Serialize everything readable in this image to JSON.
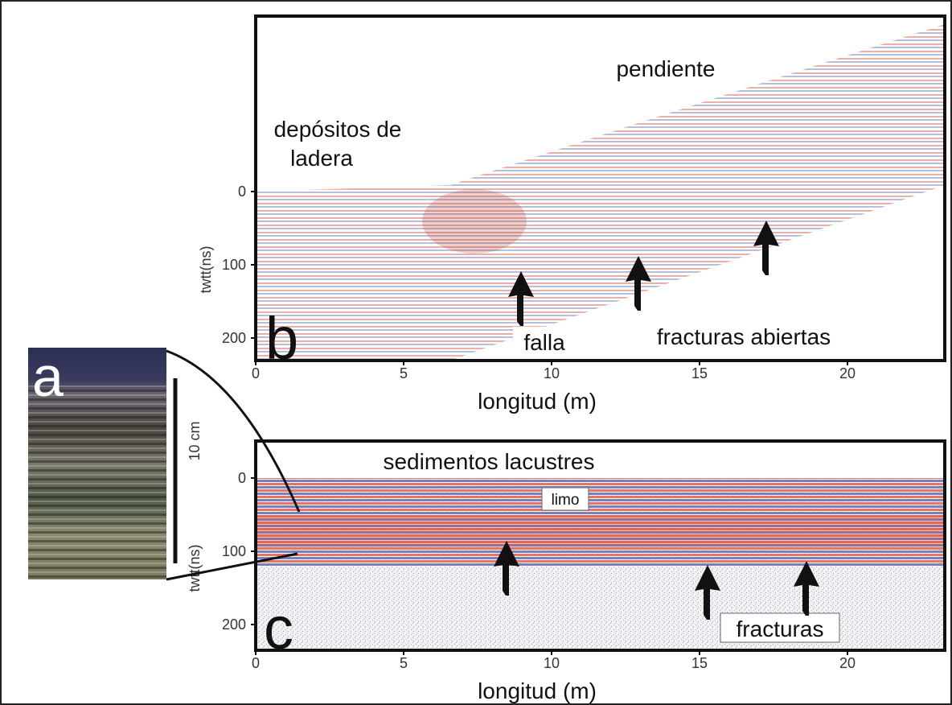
{
  "panel_a": {
    "label": "a",
    "scale": "10 cm"
  },
  "panel_b": {
    "label": "b",
    "x_axis_label": "longitud (m)",
    "y_axis_label": "twtt(ns)",
    "xticks": [
      0,
      5,
      10,
      15,
      20
    ],
    "yticks": [
      0,
      100,
      200
    ],
    "annotations": [
      "pendiente",
      "depósitos de",
      "ladera",
      "falla",
      "fracturas abiertas"
    ]
  },
  "panel_c": {
    "label": "c",
    "x_axis_label": "longitud (m)",
    "y_axis_label": "twtt(ns)",
    "xticks": [
      0,
      5,
      10,
      15,
      20
    ],
    "yticks": [
      0,
      100,
      200
    ],
    "annotations": [
      "sedimentos lacustres",
      "limo",
      "fracturas"
    ]
  }
}
